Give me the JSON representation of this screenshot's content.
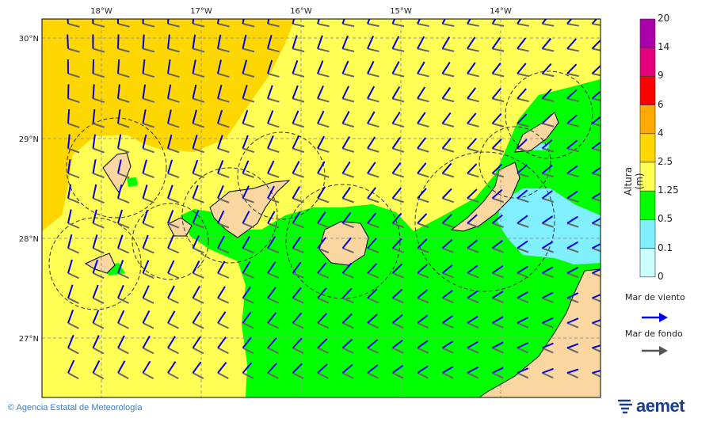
{
  "map": {
    "longitude_labels": [
      "18°W",
      "17°W",
      "16°W",
      "15°W",
      "14°W"
    ],
    "latitude_labels": [
      "30°N",
      "29°N",
      "28°N",
      "27°N"
    ],
    "colors": {
      "land": "#FAD7A0",
      "wind_sea_arrow": "#0000EE",
      "swell_arrow": "#666666"
    }
  },
  "legend": {
    "title": "Altura (m)",
    "ticks": [
      "20",
      "14",
      "9",
      "6",
      "4",
      "2.5",
      "1.25",
      "0.5",
      "0.1",
      "0"
    ],
    "bins": [
      {
        "range": "14-20",
        "color": "#AA00AA"
      },
      {
        "range": "9-14",
        "color": "#E6007E"
      },
      {
        "range": "6-9",
        "color": "#FF0000"
      },
      {
        "range": "4-6",
        "color": "#FFAA00"
      },
      {
        "range": "2.5-4",
        "color": "#FFD700"
      },
      {
        "range": "1.25-2.5",
        "color": "#FFFF55"
      },
      {
        "range": "0.5-1.25",
        "color": "#00FF00"
      },
      {
        "range": "0.1-0.5",
        "color": "#80F0FF"
      },
      {
        "range": "0-0.1",
        "color": "#CCFFFF"
      }
    ],
    "wind_sea_label": "Mar de viento",
    "swell_label": "Mar de fondo"
  },
  "footer": {
    "copyright": "© Agencia Estatal de Meteorología",
    "logo": "aemet"
  }
}
